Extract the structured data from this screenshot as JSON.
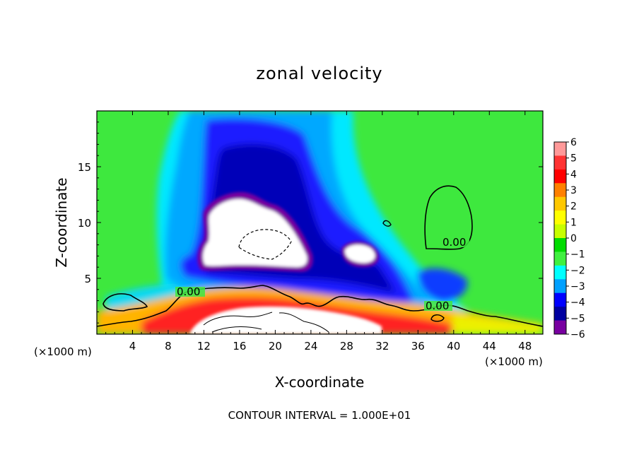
{
  "chart_data": {
    "type": "heatmap",
    "title": "zonal velocity",
    "xlabel": "X-coordinate",
    "ylabel": "Z-coordinate",
    "x_units": "(×1000 m)",
    "x_units_right": "(×1000 m)",
    "xlim": [
      0,
      50
    ],
    "ylim": [
      0,
      20
    ],
    "xticks": [
      4,
      8,
      12,
      16,
      20,
      24,
      28,
      32,
      36,
      40,
      44,
      48
    ],
    "yticks": [
      5,
      10,
      15
    ],
    "footer": "CONTOUR INTERVAL = 1.000E+01",
    "colorbar": {
      "levels": [
        6,
        5,
        4,
        3,
        2,
        1,
        0,
        -1,
        -2,
        -3,
        -4,
        -5,
        -6
      ],
      "labels": [
        "6",
        "5",
        "4",
        "3",
        "2",
        "1",
        "0",
        "−1",
        "−2",
        "−3",
        "−4",
        "−5",
        "−6"
      ],
      "colors": [
        "#ff9999",
        "#ff3333",
        "#ff0000",
        "#ff8000",
        "#ffc800",
        "#ffff00",
        "#c8ff00",
        "#00dc00",
        "#40f040",
        "#00ffff",
        "#00a0ff",
        "#0000ff",
        "#0000a0",
        "#7800a0"
      ]
    },
    "contour_labels": [
      "0.00",
      "0.00",
      "0.00"
    ]
  }
}
